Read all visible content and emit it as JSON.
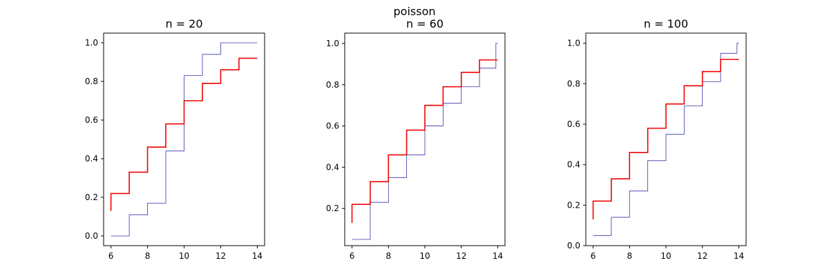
{
  "figure": {
    "suptitle": "poisson"
  },
  "colors": {
    "empirical": "#3333aa",
    "theoretical": "#ee0000",
    "axes": "#000000",
    "background": "#ffffff"
  },
  "chart_data": [
    {
      "type": "line",
      "title": "n = 20",
      "xlim": [
        5.6,
        14.4
      ],
      "ylim": [
        -0.05,
        1.05
      ],
      "xticks": [
        6,
        8,
        10,
        12,
        14
      ],
      "yticks": [
        0.0,
        0.2,
        0.4,
        0.6,
        0.8,
        1.0
      ],
      "grid": false,
      "series": [
        {
          "drawstyle": "steps-post",
          "color": "#3333aa",
          "x": [
            6,
            7,
            8,
            9,
            10,
            11,
            12,
            13,
            14
          ],
          "y": [
            0.0,
            0.11,
            0.17,
            0.44,
            0.83,
            0.94,
            1.0,
            1.0,
            1.0
          ]
        },
        {
          "drawstyle": "steps-post",
          "color": "#ee0000",
          "x": [
            6,
            6,
            7,
            8,
            9,
            10,
            11,
            12,
            13,
            14
          ],
          "y": [
            0.13,
            0.22,
            0.33,
            0.46,
            0.58,
            0.7,
            0.79,
            0.86,
            0.92,
            0.92
          ]
        }
      ]
    },
    {
      "type": "line",
      "title": "n = 60",
      "xlim": [
        5.6,
        14.4
      ],
      "ylim": [
        0.02,
        1.05
      ],
      "xticks": [
        6,
        8,
        10,
        12,
        14
      ],
      "yticks": [
        0.2,
        0.4,
        0.6,
        0.8,
        1.0
      ],
      "grid": false,
      "series": [
        {
          "drawstyle": "steps-post",
          "color": "#3333aa",
          "x": [
            6,
            7,
            8,
            9,
            10,
            11,
            12,
            13,
            13.9,
            14
          ],
          "y": [
            0.05,
            0.23,
            0.35,
            0.46,
            0.6,
            0.71,
            0.79,
            0.88,
            1.0,
            1.0
          ]
        },
        {
          "drawstyle": "steps-post",
          "color": "#ee0000",
          "x": [
            6,
            6,
            7,
            8,
            9,
            10,
            11,
            12,
            13,
            14
          ],
          "y": [
            0.13,
            0.22,
            0.33,
            0.46,
            0.58,
            0.7,
            0.79,
            0.86,
            0.92,
            0.92
          ]
        }
      ]
    },
    {
      "type": "line",
      "title": "n = 100",
      "xlim": [
        5.6,
        14.4
      ],
      "ylim": [
        0.0,
        1.05
      ],
      "xticks": [
        6,
        8,
        10,
        12,
        14
      ],
      "yticks": [
        0.0,
        0.2,
        0.4,
        0.6,
        0.8,
        1.0
      ],
      "grid": false,
      "series": [
        {
          "drawstyle": "steps-post",
          "color": "#3333aa",
          "x": [
            6,
            7,
            8,
            9,
            10,
            11,
            12,
            13,
            13.9,
            14
          ],
          "y": [
            0.05,
            0.14,
            0.27,
            0.42,
            0.55,
            0.69,
            0.81,
            0.95,
            1.0,
            1.0
          ]
        },
        {
          "drawstyle": "steps-post",
          "color": "#ee0000",
          "x": [
            6,
            6,
            7,
            8,
            9,
            10,
            11,
            12,
            13,
            14
          ],
          "y": [
            0.13,
            0.22,
            0.33,
            0.46,
            0.58,
            0.7,
            0.79,
            0.86,
            0.92,
            0.92
          ]
        }
      ]
    }
  ]
}
